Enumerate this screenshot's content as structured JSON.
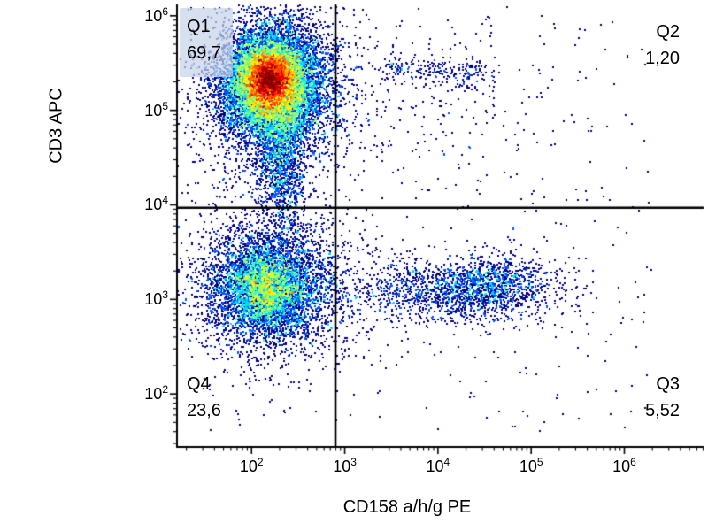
{
  "figure": {
    "background_color": "#ffffff",
    "text_color": "#000000"
  },
  "chart_data": {
    "type": "scatter",
    "subtype": "flow-cytometry-pseudocolor-density-plot",
    "title": "",
    "xlabel": "CD158 a/h/g PE",
    "ylabel": "CD3 APC",
    "x_scale": "log10",
    "y_scale": "log10",
    "x_range_log10": [
      1.2,
      6.85
    ],
    "y_range_log10": [
      1.44,
      6.12
    ],
    "x_tick_exponents": [
      2,
      3,
      4,
      5,
      6
    ],
    "y_tick_exponents": [
      2,
      3,
      4,
      5,
      6
    ],
    "x_tick_labels": [
      "10^2",
      "10^3",
      "10^4",
      "10^5",
      "10^6"
    ],
    "y_tick_labels": [
      "10^2",
      "10^3",
      "10^4",
      "10^5",
      "10^6"
    ],
    "tick_label_base": "10",
    "grid": false,
    "legend": false,
    "colormap": "jet",
    "density_cap_per_cell": 25,
    "seed": 1234,
    "quadrants": {
      "gate_x_log10": 2.9,
      "gate_y_log10": 3.97,
      "q1": {
        "name": "Q1",
        "value": "69,7"
      },
      "q2": {
        "name": "Q2",
        "value": "1,20"
      },
      "q3": {
        "name": "Q3",
        "value": "5,52"
      },
      "q4": {
        "name": "Q4",
        "value": "23,6"
      }
    },
    "populations": [
      {
        "name": "q1-core",
        "shape": "gaussian",
        "center": [
          2.2,
          5.32
        ],
        "sigma": [
          0.13,
          0.15
        ],
        "count": 6000
      },
      {
        "name": "q1-mid",
        "shape": "gaussian",
        "center": [
          2.22,
          5.28
        ],
        "sigma": [
          0.26,
          0.28
        ],
        "count": 9000
      },
      {
        "name": "q1-halo",
        "shape": "gaussian",
        "center": [
          2.25,
          5.22
        ],
        "sigma": [
          0.45,
          0.5
        ],
        "count": 2600
      },
      {
        "name": "q1-tail",
        "shape": "gaussian",
        "center": [
          2.32,
          4.55
        ],
        "sigma": [
          0.13,
          0.42
        ],
        "count": 1500
      },
      {
        "name": "q4-core",
        "shape": "gaussian",
        "center": [
          2.15,
          3.12
        ],
        "sigma": [
          0.18,
          0.18
        ],
        "count": 1800
      },
      {
        "name": "q4-mid",
        "shape": "gaussian",
        "center": [
          2.18,
          3.12
        ],
        "sigma": [
          0.33,
          0.3
        ],
        "count": 4200
      },
      {
        "name": "q4-halo",
        "shape": "gaussian",
        "center": [
          2.2,
          3.1
        ],
        "sigma": [
          0.55,
          0.5
        ],
        "count": 900
      },
      {
        "name": "q3-band",
        "shape": "gaussian",
        "center": [
          4.1,
          3.1
        ],
        "sigma": [
          0.58,
          0.18
        ],
        "count": 1300
      },
      {
        "name": "q3-dense",
        "shape": "gaussian",
        "center": [
          4.55,
          3.12
        ],
        "sigma": [
          0.27,
          0.15
        ],
        "count": 650
      },
      {
        "name": "q3-right-sparse",
        "shape": "gaussian",
        "center": [
          5.05,
          3.15
        ],
        "sigma": [
          0.25,
          0.2
        ],
        "count": 60
      },
      {
        "name": "q2-clump-a",
        "shape": "gaussian",
        "center": [
          3.55,
          5.45
        ],
        "sigma": [
          0.1,
          0.07
        ],
        "count": 60
      },
      {
        "name": "q2-clump-b",
        "shape": "gaussian",
        "center": [
          3.95,
          5.42
        ],
        "sigma": [
          0.12,
          0.07
        ],
        "count": 70
      },
      {
        "name": "q2-clump-c",
        "shape": "gaussian",
        "center": [
          4.35,
          5.4
        ],
        "sigma": [
          0.12,
          0.08
        ],
        "count": 80
      },
      {
        "name": "q2-scatter",
        "shape": "gaussian",
        "center": [
          4.2,
          5.15
        ],
        "sigma": [
          0.6,
          0.45
        ],
        "count": 160
      },
      {
        "name": "background-scatter",
        "shape": "uniform",
        "x_range": [
          1.5,
          6.3
        ],
        "y_range": [
          1.6,
          6.0
        ],
        "count": 380
      }
    ]
  }
}
